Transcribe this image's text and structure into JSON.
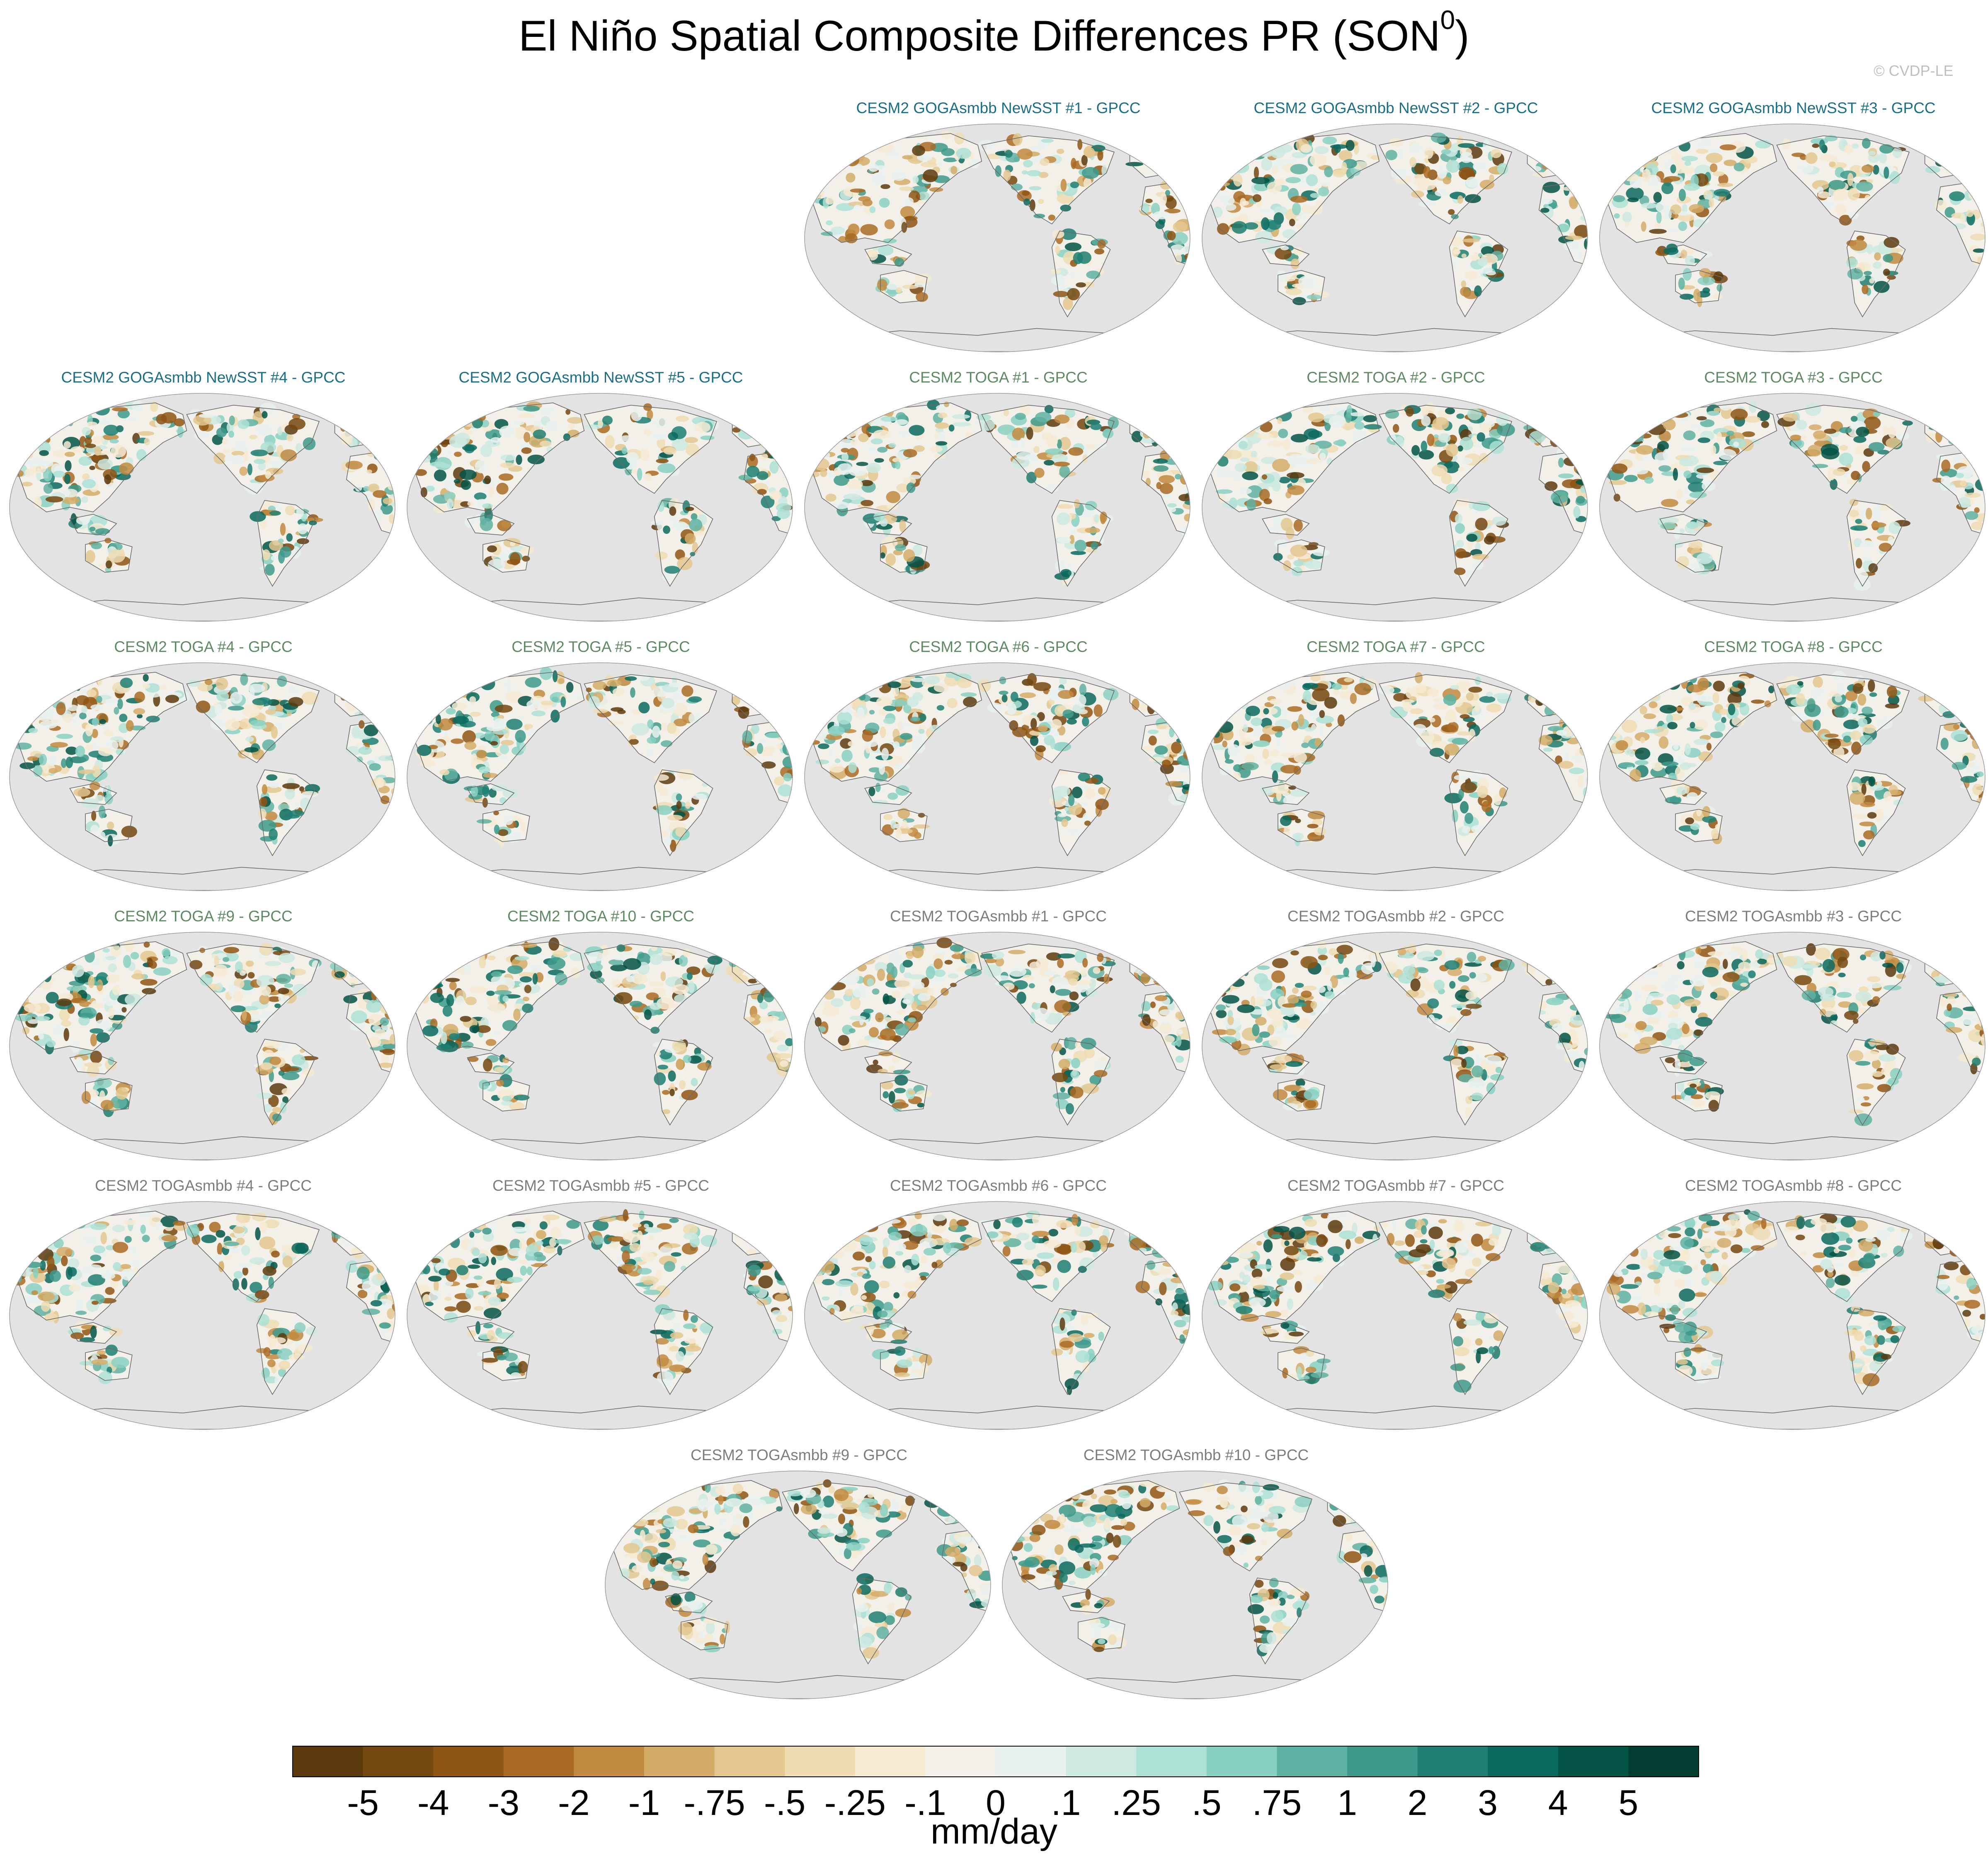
{
  "title": {
    "main": "El Niño Spatial Composite Differences PR (SON",
    "superscript": "0",
    "close": ")"
  },
  "credit": "© CVDP-LE",
  "group_colors": {
    "GOGA": "#1b6e86",
    "TOGA": "#5e8a62",
    "TOGAsmbb": "#7d7d7d"
  },
  "map_style": {
    "ocean_fill": "#e3e3e3",
    "coast_stroke": "#6a6a6a"
  },
  "panels": [
    {
      "title": "CESM2 GOGAsmbb NewSST #1 - GPCC",
      "group": "GOGA"
    },
    {
      "title": "CESM2 GOGAsmbb NewSST #2 - GPCC",
      "group": "GOGA"
    },
    {
      "title": "CESM2 GOGAsmbb NewSST #3 - GPCC",
      "group": "GOGA"
    },
    {
      "title": "CESM2 GOGAsmbb NewSST #4 - GPCC",
      "group": "GOGA"
    },
    {
      "title": "CESM2 GOGAsmbb NewSST #5 - GPCC",
      "group": "GOGA"
    },
    {
      "title": "CESM2 TOGA #1 - GPCC",
      "group": "TOGA"
    },
    {
      "title": "CESM2 TOGA #2 - GPCC",
      "group": "TOGA"
    },
    {
      "title": "CESM2 TOGA #3 - GPCC",
      "group": "TOGA"
    },
    {
      "title": "CESM2 TOGA #4 - GPCC",
      "group": "TOGA"
    },
    {
      "title": "CESM2 TOGA #5 - GPCC",
      "group": "TOGA"
    },
    {
      "title": "CESM2 TOGA #6 - GPCC",
      "group": "TOGA"
    },
    {
      "title": "CESM2 TOGA #7 - GPCC",
      "group": "TOGA"
    },
    {
      "title": "CESM2 TOGA #8 - GPCC",
      "group": "TOGA"
    },
    {
      "title": "CESM2 TOGA #9 - GPCC",
      "group": "TOGA"
    },
    {
      "title": "CESM2 TOGA #10 - GPCC",
      "group": "TOGA"
    },
    {
      "title": "CESM2 TOGAsmbb #1 - GPCC",
      "group": "TOGAsmbb"
    },
    {
      "title": "CESM2 TOGAsmbb #2 - GPCC",
      "group": "TOGAsmbb"
    },
    {
      "title": "CESM2 TOGAsmbb #3 - GPCC",
      "group": "TOGAsmbb"
    },
    {
      "title": "CESM2 TOGAsmbb #4 - GPCC",
      "group": "TOGAsmbb"
    },
    {
      "title": "CESM2 TOGAsmbb #5 - GPCC",
      "group": "TOGAsmbb"
    },
    {
      "title": "CESM2 TOGAsmbb #6 - GPCC",
      "group": "TOGAsmbb"
    },
    {
      "title": "CESM2 TOGAsmbb #7 - GPCC",
      "group": "TOGAsmbb"
    },
    {
      "title": "CESM2 TOGAsmbb #8 - GPCC",
      "group": "TOGAsmbb"
    },
    {
      "title": "CESM2 TOGAsmbb #9 - GPCC",
      "group": "TOGAsmbb"
    },
    {
      "title": "CESM2 TOGAsmbb #10 - GPCC",
      "group": "TOGAsmbb"
    }
  ],
  "colorbar": {
    "units": "mm/day",
    "colors": [
      "#5c3a0e",
      "#754811",
      "#8f5514",
      "#a96b24",
      "#c18a3f",
      "#d4ab67",
      "#e3c78f",
      "#efdcb3",
      "#f5ead2",
      "#f3f0ea",
      "#e8f1ee",
      "#cde9e2",
      "#ade1d6",
      "#88d0c2",
      "#5fb2a2",
      "#3d9a8b",
      "#1e7f72",
      "#0b6a5e",
      "#045446",
      "#023d31"
    ],
    "ticks": [
      "-5",
      "-4",
      "-3",
      "-2",
      "-1",
      "-.75",
      "-.5",
      "-.25",
      "-.1",
      "0",
      ".1",
      ".25",
      ".5",
      ".75",
      "1",
      "2",
      "3",
      "4",
      "5"
    ]
  }
}
